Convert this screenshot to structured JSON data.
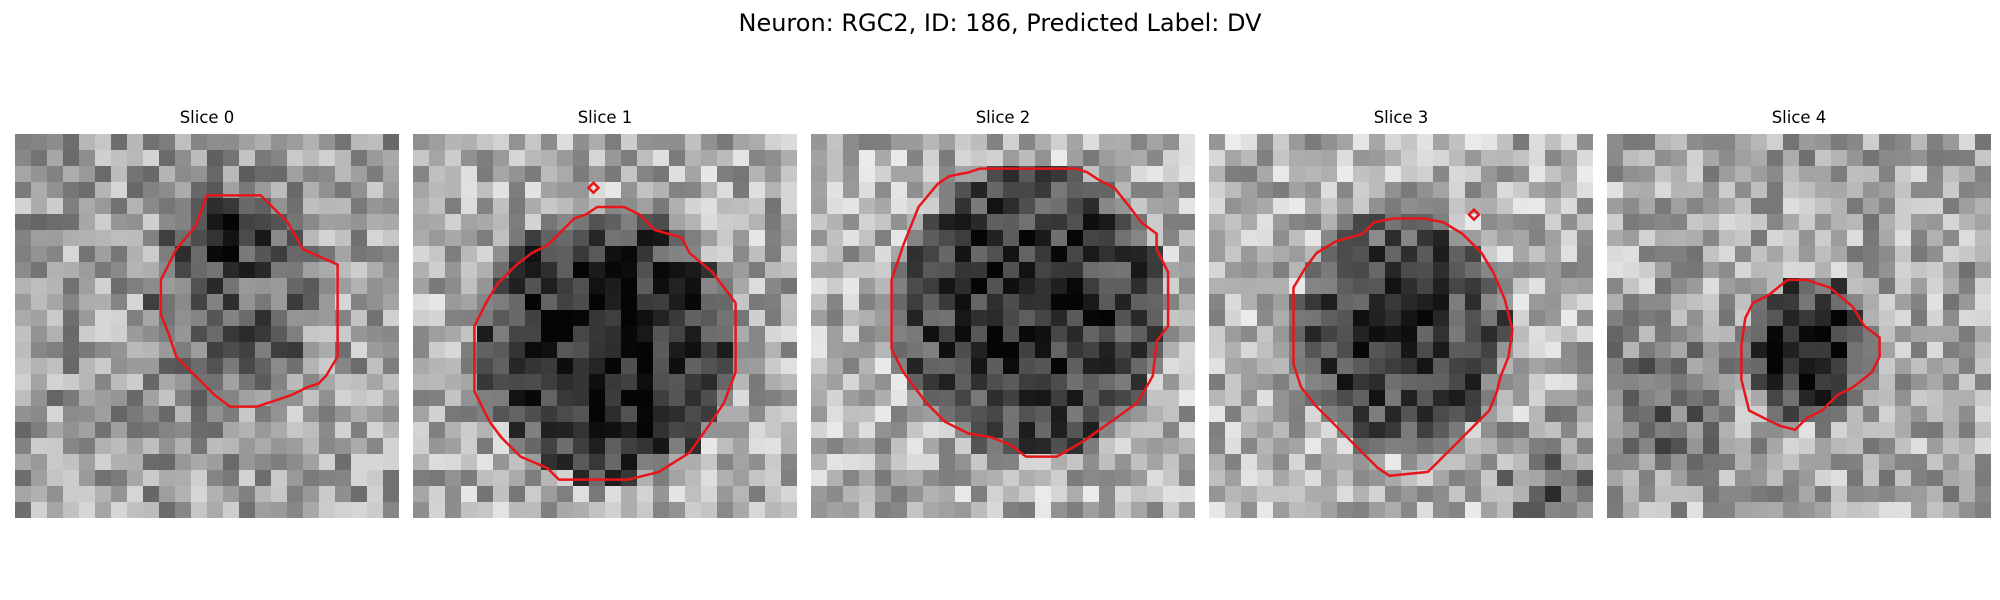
{
  "figure": {
    "title": "Neuron: RGC2, ID: 186, Predicted Label: DV"
  },
  "contour_color": "#e8161b",
  "panels": [
    {
      "title": "Slice 0",
      "image": "grayscale patch, dark cell region with a dark spot near top",
      "contour": [
        [
          0.5,
          0.16
        ],
        [
          0.64,
          0.16
        ],
        [
          0.71,
          0.23
        ],
        [
          0.75,
          0.3
        ],
        [
          0.84,
          0.34
        ],
        [
          0.84,
          0.58
        ],
        [
          0.81,
          0.63
        ],
        [
          0.79,
          0.65
        ],
        [
          0.76,
          0.66
        ],
        [
          0.72,
          0.68
        ],
        [
          0.66,
          0.7
        ],
        [
          0.63,
          0.71
        ],
        [
          0.56,
          0.71
        ],
        [
          0.52,
          0.68
        ],
        [
          0.46,
          0.62
        ],
        [
          0.42,
          0.58
        ],
        [
          0.4,
          0.52
        ],
        [
          0.38,
          0.47
        ],
        [
          0.38,
          0.38
        ],
        [
          0.4,
          0.34
        ],
        [
          0.42,
          0.3
        ],
        [
          0.47,
          0.24
        ]
      ]
    },
    {
      "title": "Slice 1",
      "image": "grayscale patch, large dark round cell",
      "contour": [
        [
          0.35,
          0.29
        ],
        [
          0.39,
          0.25
        ],
        [
          0.42,
          0.22
        ],
        [
          0.45,
          0.21
        ],
        [
          0.48,
          0.19
        ],
        [
          0.55,
          0.19
        ],
        [
          0.59,
          0.21
        ],
        [
          0.63,
          0.25
        ],
        [
          0.7,
          0.27
        ],
        [
          0.72,
          0.31
        ],
        [
          0.78,
          0.36
        ],
        [
          0.84,
          0.44
        ],
        [
          0.84,
          0.62
        ],
        [
          0.81,
          0.7
        ],
        [
          0.77,
          0.76
        ],
        [
          0.72,
          0.83
        ],
        [
          0.64,
          0.88
        ],
        [
          0.6,
          0.89
        ],
        [
          0.56,
          0.9
        ],
        [
          0.38,
          0.9
        ],
        [
          0.35,
          0.87
        ],
        [
          0.28,
          0.84
        ],
        [
          0.23,
          0.79
        ],
        [
          0.2,
          0.75
        ],
        [
          0.16,
          0.67
        ],
        [
          0.16,
          0.5
        ],
        [
          0.19,
          0.44
        ],
        [
          0.22,
          0.39
        ],
        [
          0.27,
          0.34
        ],
        [
          0.31,
          0.31
        ]
      ],
      "mark": [
        0.47,
        0.14
      ]
    },
    {
      "title": "Slice 2",
      "image": "grayscale patch, large dark round cell",
      "contour": [
        [
          0.33,
          0.13
        ],
        [
          0.36,
          0.11
        ],
        [
          0.41,
          0.1
        ],
        [
          0.44,
          0.09
        ],
        [
          0.69,
          0.09
        ],
        [
          0.72,
          0.1
        ],
        [
          0.75,
          0.12
        ],
        [
          0.79,
          0.14
        ],
        [
          0.83,
          0.19
        ],
        [
          0.86,
          0.23
        ],
        [
          0.9,
          0.26
        ],
        [
          0.9,
          0.3
        ],
        [
          0.93,
          0.36
        ],
        [
          0.93,
          0.5
        ],
        [
          0.9,
          0.54
        ],
        [
          0.89,
          0.63
        ],
        [
          0.85,
          0.7
        ],
        [
          0.78,
          0.75
        ],
        [
          0.71,
          0.8
        ],
        [
          0.64,
          0.84
        ],
        [
          0.56,
          0.84
        ],
        [
          0.52,
          0.81
        ],
        [
          0.47,
          0.79
        ],
        [
          0.41,
          0.78
        ],
        [
          0.35,
          0.75
        ],
        [
          0.3,
          0.7
        ],
        [
          0.24,
          0.62
        ],
        [
          0.21,
          0.56
        ],
        [
          0.21,
          0.38
        ],
        [
          0.24,
          0.29
        ],
        [
          0.28,
          0.19
        ]
      ]
    },
    {
      "title": "Slice 3",
      "image": "grayscale patch, dark round cell with lighter surroundings",
      "contour": [
        [
          0.4,
          0.26
        ],
        [
          0.43,
          0.23
        ],
        [
          0.48,
          0.22
        ],
        [
          0.56,
          0.22
        ],
        [
          0.61,
          0.23
        ],
        [
          0.66,
          0.26
        ],
        [
          0.71,
          0.31
        ],
        [
          0.74,
          0.36
        ],
        [
          0.77,
          0.43
        ],
        [
          0.79,
          0.51
        ],
        [
          0.78,
          0.58
        ],
        [
          0.76,
          0.63
        ],
        [
          0.75,
          0.67
        ],
        [
          0.73,
          0.72
        ],
        [
          0.69,
          0.76
        ],
        [
          0.65,
          0.8
        ],
        [
          0.61,
          0.84
        ],
        [
          0.57,
          0.88
        ],
        [
          0.47,
          0.89
        ],
        [
          0.44,
          0.87
        ],
        [
          0.41,
          0.84
        ],
        [
          0.37,
          0.8
        ],
        [
          0.33,
          0.76
        ],
        [
          0.28,
          0.71
        ],
        [
          0.24,
          0.66
        ],
        [
          0.22,
          0.6
        ],
        [
          0.22,
          0.4
        ],
        [
          0.25,
          0.35
        ],
        [
          0.28,
          0.31
        ],
        [
          0.33,
          0.28
        ]
      ],
      "mark": [
        0.69,
        0.21
      ]
    },
    {
      "title": "Slice 4",
      "image": "grayscale patch, small dark cell",
      "contour": [
        [
          0.36,
          0.48
        ],
        [
          0.38,
          0.44
        ],
        [
          0.42,
          0.42
        ],
        [
          0.47,
          0.38
        ],
        [
          0.52,
          0.38
        ],
        [
          0.58,
          0.4
        ],
        [
          0.64,
          0.45
        ],
        [
          0.67,
          0.5
        ],
        [
          0.71,
          0.53
        ],
        [
          0.71,
          0.58
        ],
        [
          0.69,
          0.62
        ],
        [
          0.64,
          0.66
        ],
        [
          0.6,
          0.68
        ],
        [
          0.56,
          0.72
        ],
        [
          0.52,
          0.74
        ],
        [
          0.49,
          0.77
        ],
        [
          0.45,
          0.76
        ],
        [
          0.41,
          0.74
        ],
        [
          0.37,
          0.72
        ],
        [
          0.35,
          0.64
        ],
        [
          0.35,
          0.55
        ]
      ]
    }
  ]
}
